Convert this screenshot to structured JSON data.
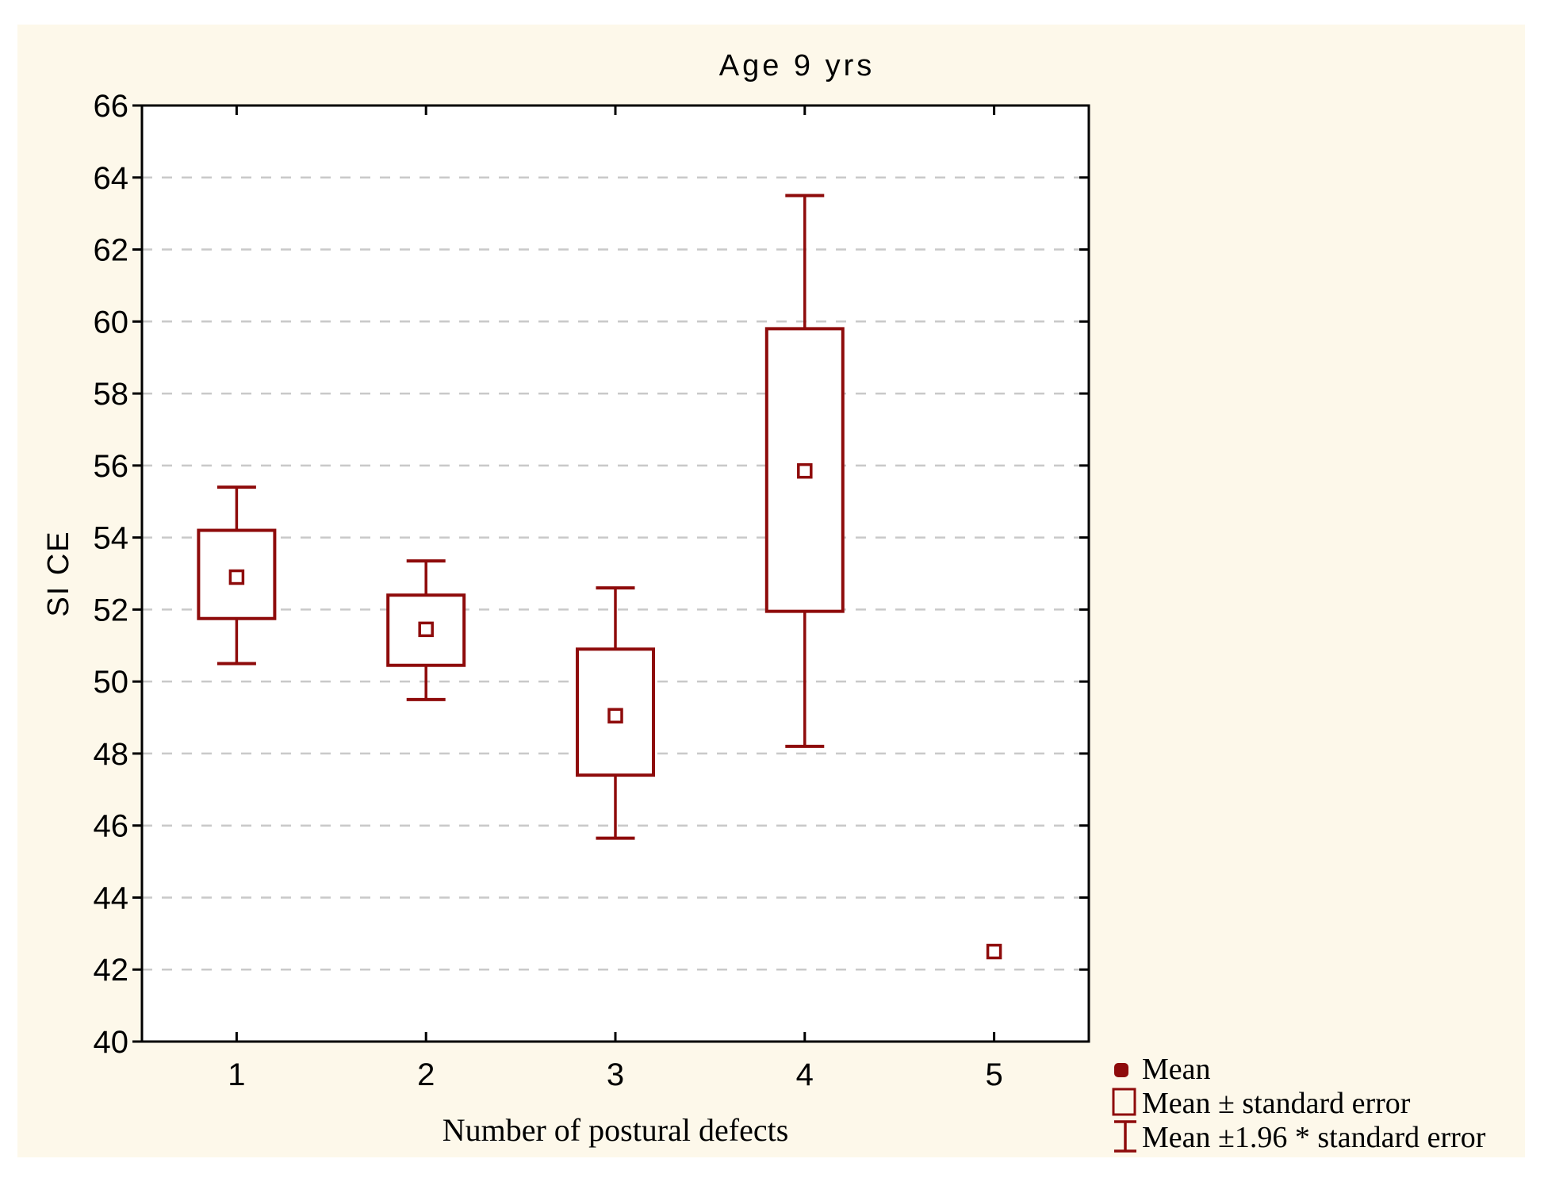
{
  "chart_data": {
    "type": "box",
    "title": "Age 9 yrs",
    "xlabel": "Number of postural defects",
    "ylabel": "SI CE",
    "y_min": 40,
    "y_max": 66,
    "y_step": 2,
    "y_ticks": [
      66,
      64,
      62,
      60,
      58,
      56,
      54,
      52,
      50,
      48,
      46,
      44,
      42,
      40
    ],
    "categories": [
      "1",
      "2",
      "3",
      "4",
      "5"
    ],
    "points": [
      {
        "category": "1",
        "mean": 52.9,
        "se_low": 51.75,
        "se_high": 54.2,
        "ci_low": 50.5,
        "ci_high": 55.4
      },
      {
        "category": "2",
        "mean": 51.45,
        "se_low": 50.45,
        "se_high": 52.4,
        "ci_low": 49.5,
        "ci_high": 53.35
      },
      {
        "category": "3",
        "mean": 49.05,
        "se_low": 47.4,
        "se_high": 50.9,
        "ci_low": 45.65,
        "ci_high": 52.6
      },
      {
        "category": "4",
        "mean": 55.85,
        "se_low": 51.95,
        "se_high": 59.8,
        "ci_low": 48.2,
        "ci_high": 63.5
      },
      {
        "category": "5",
        "mean": 42.5,
        "se_low": null,
        "se_high": null,
        "ci_low": null,
        "ci_high": null
      }
    ],
    "grid": true,
    "legend_position": "bottom-right",
    "legend": [
      {
        "marker": "mean-point-marker",
        "label": "Mean"
      },
      {
        "marker": "std-error-box",
        "label": "Mean ± standard error"
      },
      {
        "marker": "ci-whisker",
        "label": "Mean ±1.96 * standard error"
      }
    ],
    "colors": {
      "series": "#8E0B0B",
      "background": "#FDF8EA",
      "plot_background": "#FFFFFF",
      "gridline": "#C9C9C9",
      "axis": "#000000"
    }
  }
}
